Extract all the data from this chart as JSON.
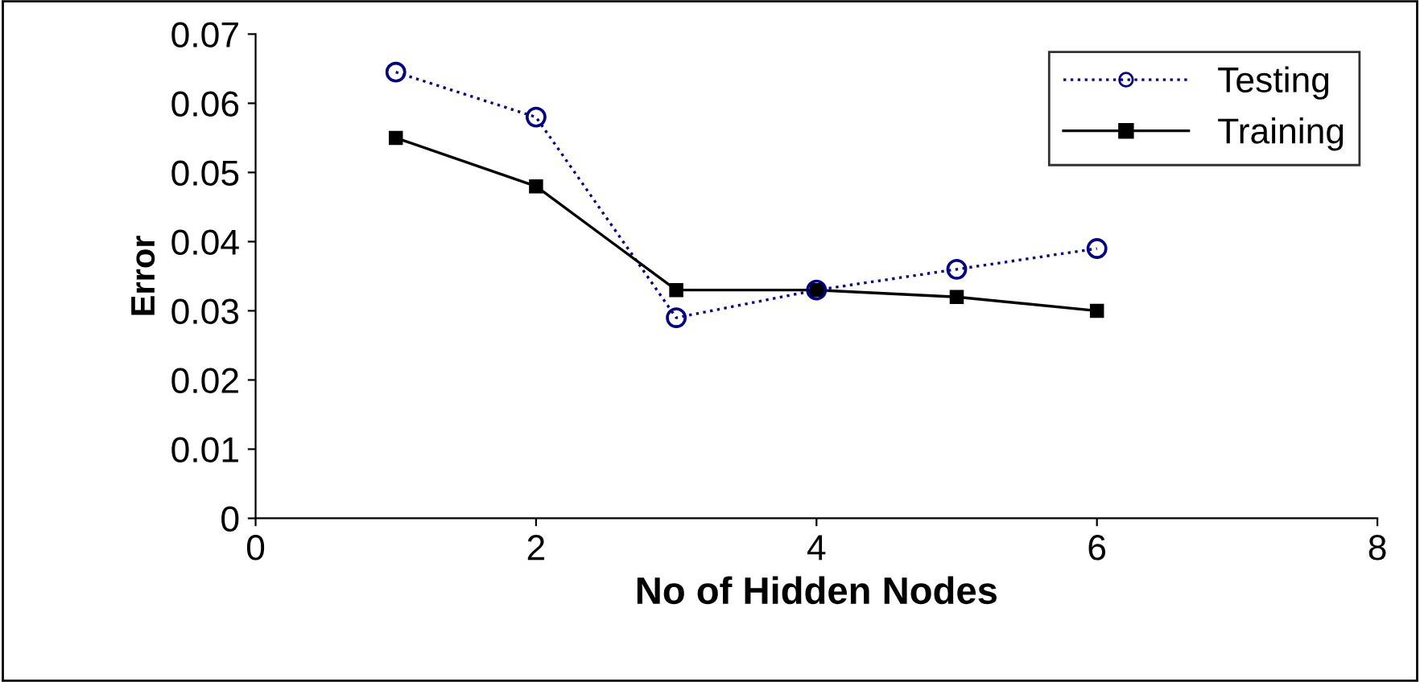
{
  "chart_data": {
    "type": "line",
    "xlabel": "No of Hidden Nodes",
    "ylabel": "Error",
    "x": [
      1,
      2,
      3,
      4,
      5,
      6
    ],
    "series": [
      {
        "name": "Testing",
        "color": "#000080",
        "values": [
          0.0645,
          0.058,
          0.029,
          0.033,
          0.036,
          0.039
        ],
        "marker": "circle",
        "line_style": "dotted"
      },
      {
        "name": "Training",
        "color": "#000000",
        "values": [
          0.055,
          0.048,
          0.033,
          0.033,
          0.032,
          0.03
        ],
        "marker": "square",
        "line_style": "solid"
      }
    ],
    "xlim": [
      0,
      8
    ],
    "xticks": [
      0,
      2,
      4,
      6,
      8
    ],
    "ylim": [
      0,
      0.07
    ],
    "yticks": [
      0,
      0.01,
      0.02,
      0.03,
      0.04,
      0.05,
      0.06,
      0.07
    ],
    "grid": false,
    "legend": "top right"
  }
}
